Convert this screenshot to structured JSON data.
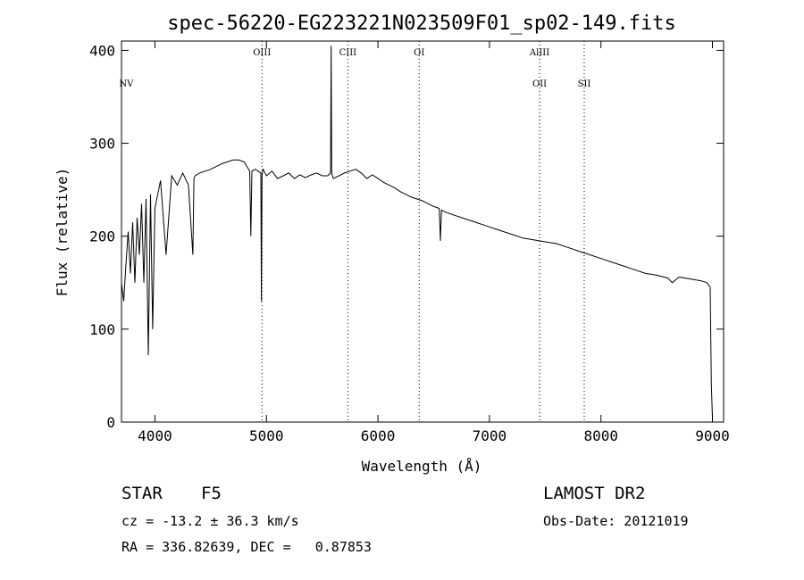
{
  "chart_data": {
    "type": "line",
    "title": "spec-56220-EG223221N023509F01_sp02-149.fits",
    "xlabel": "Wavelength (Å)",
    "ylabel": "Flux (relative)",
    "xlim": [
      3700,
      9100
    ],
    "ylim": [
      0,
      410
    ],
    "x_ticks": [
      4000,
      5000,
      6000,
      7000,
      8000,
      9000
    ],
    "y_ticks": [
      0,
      100,
      200,
      300,
      400
    ],
    "grid": false,
    "lines": [
      {
        "name": "NV",
        "x": 3743,
        "label_level": 1
      },
      {
        "name": "OIII",
        "x": 4960,
        "label_level": 0
      },
      {
        "name": "CIII",
        "x": 5730,
        "label_level": 0
      },
      {
        "name": "OI",
        "x": 6370,
        "label_level": 0
      },
      {
        "name": "AlIII",
        "x": 7450,
        "label_level": 0
      },
      {
        "name": "OII",
        "x": 7450,
        "label_level": 1
      },
      {
        "name": "SII",
        "x": 7850,
        "label_level": 1
      }
    ],
    "series": [
      {
        "x": [
          3700,
          3720,
          3740,
          3760,
          3780,
          3800,
          3820,
          3840,
          3860,
          3880,
          3900,
          3920,
          3940,
          3960,
          3980,
          4000,
          4050,
          4100,
          4150,
          4200,
          4250,
          4300,
          4340,
          4350,
          4360,
          4400,
          4450,
          4500,
          4550,
          4600,
          4650,
          4700,
          4750,
          4800,
          4850,
          4860,
          4870,
          4900,
          4950,
          4955,
          4960,
          4965,
          4970,
          5000,
          5050,
          5100,
          5150,
          5200,
          5250,
          5300,
          5350,
          5400,
          5450,
          5500,
          5550,
          5575,
          5580,
          5585,
          5600,
          5650,
          5700,
          5750,
          5800,
          5850,
          5900,
          5950,
          6000,
          6050,
          6100,
          6150,
          6200,
          6250,
          6300,
          6350,
          6400,
          6450,
          6500,
          6550,
          6560,
          6570,
          6600,
          6650,
          6700,
          6750,
          6800,
          6850,
          6900,
          6950,
          7000,
          7100,
          7200,
          7300,
          7400,
          7500,
          7600,
          7700,
          7800,
          7900,
          8000,
          8100,
          8200,
          8300,
          8400,
          8500,
          8600,
          8640,
          8700,
          8800,
          8900,
          8950,
          8980,
          8990,
          9000
        ],
        "y": [
          150,
          130,
          170,
          205,
          160,
          215,
          150,
          220,
          180,
          235,
          150,
          240,
          72,
          245,
          100,
          230,
          260,
          180,
          265,
          255,
          268,
          255,
          180,
          262,
          265,
          268,
          270,
          272,
          275,
          278,
          280,
          282,
          282,
          280,
          270,
          200,
          270,
          272,
          268,
          130,
          265,
          270,
          272,
          265,
          270,
          262,
          265,
          268,
          262,
          266,
          263,
          266,
          268,
          265,
          265,
          268,
          405,
          268,
          262,
          265,
          268,
          270,
          272,
          268,
          262,
          266,
          262,
          258,
          255,
          252,
          248,
          245,
          242,
          240,
          238,
          235,
          232,
          230,
          195,
          228,
          226,
          224,
          222,
          220,
          218,
          216,
          214,
          212,
          210,
          206,
          202,
          198,
          196,
          194,
          192,
          188,
          184,
          180,
          176,
          172,
          168,
          164,
          160,
          158,
          155,
          150,
          156,
          154,
          152,
          150,
          145,
          40,
          5
        ]
      }
    ],
    "info": {
      "class": "STAR",
      "subclass": "F5",
      "cz": "cz = -13.2 ± 36.3 km/s",
      "radec": "RA = 336.82639, DEC =   0.87853",
      "survey": "LAMOST DR2",
      "obsdate": "Obs-Date: 20121019"
    }
  }
}
